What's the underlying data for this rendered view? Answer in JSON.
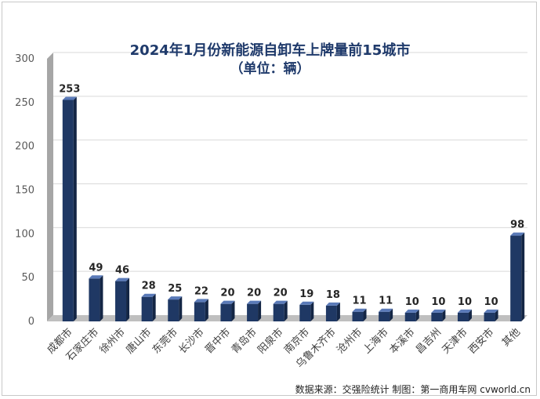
{
  "chart_data": {
    "type": "bar",
    "title": "2024年1月份新能源自卸车上牌量前15城市",
    "subtitle": "（单位：辆）",
    "categories": [
      "成都市",
      "石家庄市",
      "徐州市",
      "唐山市",
      "东莞市",
      "长沙市",
      "晋中市",
      "青岛市",
      "阳泉市",
      "南京市",
      "乌鲁木齐市",
      "沧州市",
      "上海市",
      "本溪市",
      "昌吉州",
      "天津市",
      "西安市",
      "其他"
    ],
    "values": [
      253,
      49,
      46,
      28,
      25,
      22,
      20,
      20,
      20,
      19,
      18,
      11,
      11,
      10,
      10,
      10,
      10,
      98
    ],
    "ylim": [
      0,
      300
    ],
    "yticks": [
      0,
      50,
      100,
      150,
      200,
      250,
      300
    ],
    "grid": true,
    "legend": "none",
    "bar_color": "#1f3864",
    "bar_side_color": "#142645",
    "bar_top_color": "#5a7ab8"
  },
  "footer": {
    "source": "数据来源：交强险统计  制图：第一商用车网 cvworld.cn"
  }
}
